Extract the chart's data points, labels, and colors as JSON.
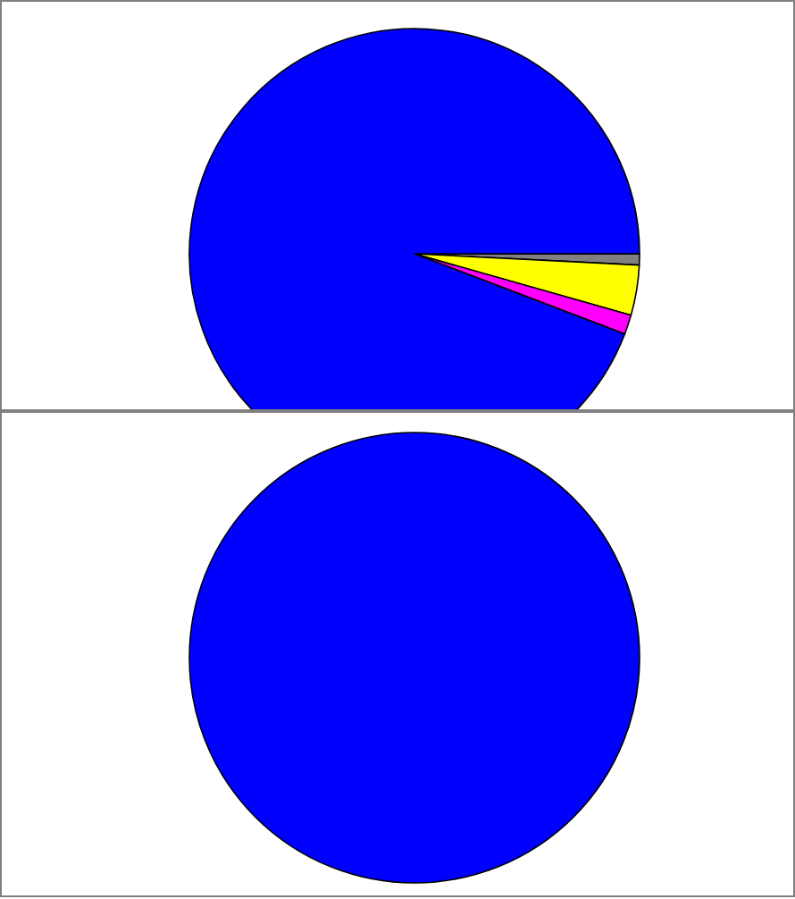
{
  "chart_data": [
    {
      "type": "pie",
      "categories": [
        null,
        null,
        null,
        null
      ],
      "values": [
        0.8,
        3.6,
        1.4,
        94.2
      ],
      "colors": [
        "#808080",
        "#ffff00",
        "#ff00ff",
        "#0000ff"
      ]
    },
    {
      "type": "pie",
      "categories": [
        null
      ],
      "values": [
        100
      ],
      "colors": [
        "#0000ff"
      ]
    }
  ]
}
